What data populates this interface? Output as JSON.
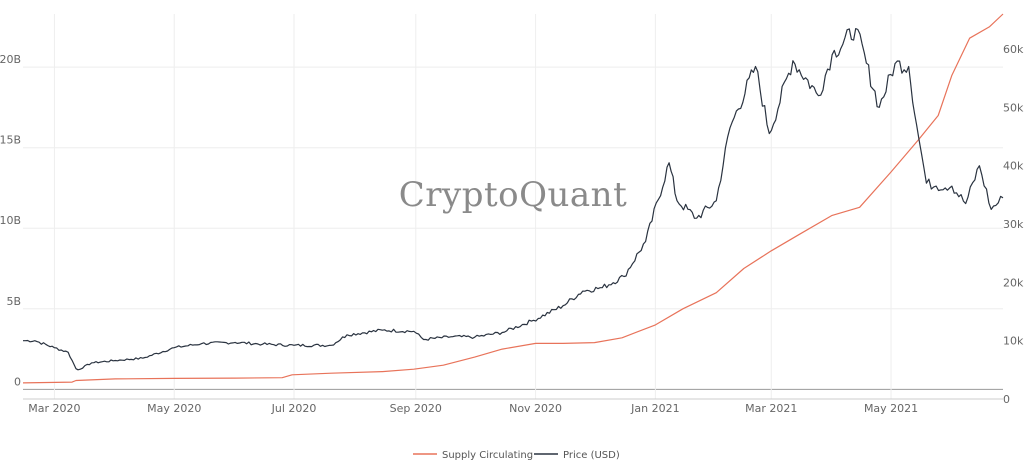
{
  "watermark": "CryptoQuant",
  "colors": {
    "supply": "#e8735a",
    "price": "#2a3340",
    "grid": "#eeeeee",
    "zero_line": "#9a9a9a",
    "tick_text": "#666666"
  },
  "chart_data": {
    "type": "line",
    "title": "",
    "grid": true,
    "legend_placement": "bottom-center",
    "x_range": [
      "2020-02-14",
      "2021-06-27"
    ],
    "x_ticks": [
      "Mar 2020",
      "May 2020",
      "Jul 2020",
      "Sep 2020",
      "Nov 2020",
      "Jan 2021",
      "Mar 2021",
      "May 2021"
    ],
    "y_left": {
      "ylim": [
        -0.6,
        23.3
      ],
      "ticks": [
        0,
        5,
        10,
        15,
        20
      ],
      "tick_labels": [
        "0",
        "5B",
        "10B",
        "15B",
        "20B"
      ]
    },
    "y_right": {
      "ylim": [
        0,
        66000
      ],
      "ticks": [
        0,
        10000,
        20000,
        30000,
        40000,
        50000,
        60000
      ],
      "tick_labels": [
        "0",
        "10k",
        "20k",
        "30k",
        "40k",
        "50k",
        "60k"
      ]
    },
    "series": [
      {
        "name": "Supply Circulating",
        "axis": "left",
        "points": [
          [
            "2020-02-14",
            0.4
          ],
          [
            "2020-03-10",
            0.45
          ],
          [
            "2020-03-12",
            0.55
          ],
          [
            "2020-04-01",
            0.65
          ],
          [
            "2020-05-01",
            0.68
          ],
          [
            "2020-06-01",
            0.7
          ],
          [
            "2020-06-25",
            0.72
          ],
          [
            "2020-06-30",
            0.9
          ],
          [
            "2020-07-20",
            1.0
          ],
          [
            "2020-08-15",
            1.1
          ],
          [
            "2020-08-31",
            1.25
          ],
          [
            "2020-09-15",
            1.5
          ],
          [
            "2020-10-01",
            2.0
          ],
          [
            "2020-10-15",
            2.5
          ],
          [
            "2020-11-01",
            2.85
          ],
          [
            "2020-11-15",
            2.85
          ],
          [
            "2020-12-01",
            2.9
          ],
          [
            "2020-12-15",
            3.2
          ],
          [
            "2021-01-01",
            4.0
          ],
          [
            "2021-01-15",
            5.0
          ],
          [
            "2021-02-01",
            6.0
          ],
          [
            "2021-02-15",
            7.5
          ],
          [
            "2021-03-01",
            8.6
          ],
          [
            "2021-03-15",
            9.6
          ],
          [
            "2021-04-01",
            10.8
          ],
          [
            "2021-04-15",
            11.3
          ],
          [
            "2021-05-01",
            13.5
          ],
          [
            "2021-05-15",
            15.5
          ],
          [
            "2021-05-25",
            17.0
          ],
          [
            "2021-06-01",
            19.5
          ],
          [
            "2021-06-10",
            21.8
          ],
          [
            "2021-06-20",
            22.5
          ],
          [
            "2021-06-27",
            23.3
          ]
        ]
      },
      {
        "name": "Price (USD)",
        "axis": "right",
        "points": [
          [
            "2020-02-14",
            10000
          ],
          [
            "2020-02-20",
            10000
          ],
          [
            "2020-03-01",
            8800
          ],
          [
            "2020-03-08",
            8000
          ],
          [
            "2020-03-12",
            5200
          ],
          [
            "2020-03-13",
            5000
          ],
          [
            "2020-03-20",
            6200
          ],
          [
            "2020-04-01",
            6600
          ],
          [
            "2020-04-15",
            7000
          ],
          [
            "2020-05-01",
            8800
          ],
          [
            "2020-05-15",
            9500
          ],
          [
            "2020-06-01",
            9700
          ],
          [
            "2020-06-15",
            9400
          ],
          [
            "2020-07-01",
            9200
          ],
          [
            "2020-07-20",
            9200
          ],
          [
            "2020-07-28",
            11000
          ],
          [
            "2020-08-15",
            11800
          ],
          [
            "2020-08-31",
            11600
          ],
          [
            "2020-09-05",
            10200
          ],
          [
            "2020-09-20",
            10700
          ],
          [
            "2020-10-01",
            10600
          ],
          [
            "2020-10-15",
            11400
          ],
          [
            "2020-10-31",
            13500
          ],
          [
            "2020-11-15",
            16000
          ],
          [
            "2020-11-25",
            18500
          ],
          [
            "2020-12-05",
            19100
          ],
          [
            "2020-12-16",
            21000
          ],
          [
            "2020-12-27",
            27000
          ],
          [
            "2021-01-08",
            40500
          ],
          [
            "2021-01-12",
            34000
          ],
          [
            "2021-01-22",
            31000
          ],
          [
            "2021-02-01",
            34000
          ],
          [
            "2021-02-08",
            46500
          ],
          [
            "2021-02-21",
            57000
          ],
          [
            "2021-02-28",
            45500
          ],
          [
            "2021-03-12",
            58000
          ],
          [
            "2021-03-25",
            52000
          ],
          [
            "2021-04-01",
            59000
          ],
          [
            "2021-04-13",
            63500
          ],
          [
            "2021-04-25",
            50000
          ],
          [
            "2021-05-03",
            57500
          ],
          [
            "2021-05-10",
            57000
          ],
          [
            "2021-05-14",
            47000
          ],
          [
            "2021-05-19",
            37000
          ],
          [
            "2021-05-24",
            36500
          ],
          [
            "2021-06-01",
            36500
          ],
          [
            "2021-06-08",
            33500
          ],
          [
            "2021-06-15",
            40000
          ],
          [
            "2021-06-21",
            32500
          ],
          [
            "2021-06-27",
            34500
          ]
        ]
      }
    ]
  }
}
